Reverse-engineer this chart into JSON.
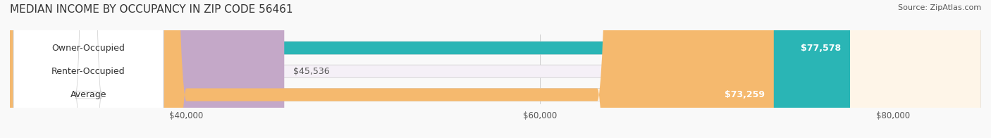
{
  "title": "MEDIAN INCOME BY OCCUPANCY IN ZIP CODE 56461",
  "source": "Source: ZipAtlas.com",
  "categories": [
    "Owner-Occupied",
    "Renter-Occupied",
    "Average"
  ],
  "values": [
    77578,
    45536,
    73259
  ],
  "labels": [
    "$77,578",
    "$45,536",
    "$73,259"
  ],
  "bar_colors": [
    "#2ab5b5",
    "#c4a8c8",
    "#f5b96e"
  ],
  "bar_bg_colors": [
    "#e8f8f8",
    "#f5f0f7",
    "#fef5e8"
  ],
  "xlim": [
    30000,
    85000
  ],
  "xticks": [
    40000,
    60000,
    80000
  ],
  "xtick_labels": [
    "$40,000",
    "$60,000",
    "$80,000"
  ],
  "figsize": [
    14.06,
    1.96
  ],
  "dpi": 100,
  "title_fontsize": 11,
  "source_fontsize": 8,
  "label_fontsize": 9,
  "tick_fontsize": 8.5,
  "cat_fontsize": 9
}
